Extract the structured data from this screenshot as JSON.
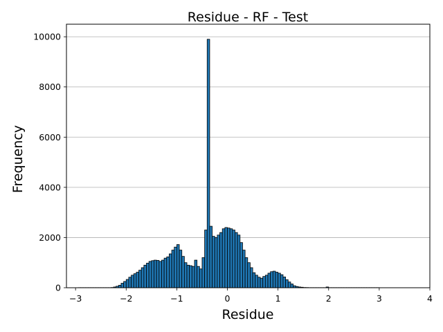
{
  "chart_data": {
    "type": "bar",
    "title": "Residue - RF - Test",
    "xlabel": "Residue",
    "ylabel": "Frequency",
    "xlim": [
      -3.18,
      4.0
    ],
    "ylim": [
      0,
      10500
    ],
    "xticks": [
      -3,
      -2,
      -1,
      0,
      1,
      2,
      3,
      4
    ],
    "xtick_labels": [
      "−3",
      "−2",
      "−1",
      "0",
      "1",
      "2",
      "3",
      "4"
    ],
    "yticks": [
      0,
      2000,
      4000,
      6000,
      8000,
      10000
    ],
    "ytick_labels": [
      "0",
      "2000",
      "4000",
      "6000",
      "8000",
      "10000"
    ],
    "grid": "horizontal",
    "bar_color": "#1f77b4",
    "edge_color": "#000000",
    "bin_start": -2.95,
    "bin_width": 0.05,
    "values": [
      5,
      5,
      5,
      5,
      5,
      5,
      5,
      5,
      5,
      5,
      5,
      5,
      5,
      10,
      30,
      60,
      100,
      180,
      250,
      330,
      420,
      500,
      560,
      620,
      700,
      800,
      900,
      980,
      1050,
      1080,
      1100,
      1090,
      1050,
      1100,
      1180,
      1230,
      1350,
      1500,
      1620,
      1720,
      1500,
      1250,
      1000,
      900,
      880,
      850,
      1100,
      850,
      750,
      1200,
      2300,
      9900,
      2450,
      2050,
      2000,
      2100,
      2200,
      2350,
      2400,
      2380,
      2350,
      2300,
      2200,
      2100,
      1800,
      1500,
      1200,
      1000,
      800,
      600,
      500,
      420,
      380,
      450,
      500,
      580,
      640,
      660,
      620,
      580,
      520,
      430,
      320,
      230,
      150,
      80,
      50,
      30,
      20,
      10,
      8,
      5,
      5,
      5,
      5,
      5,
      5,
      5,
      30,
      5,
      5,
      5,
      5,
      5,
      5,
      5,
      5,
      5,
      5,
      5,
      5,
      5,
      5,
      5,
      5,
      5,
      5,
      5,
      5
    ]
  }
}
